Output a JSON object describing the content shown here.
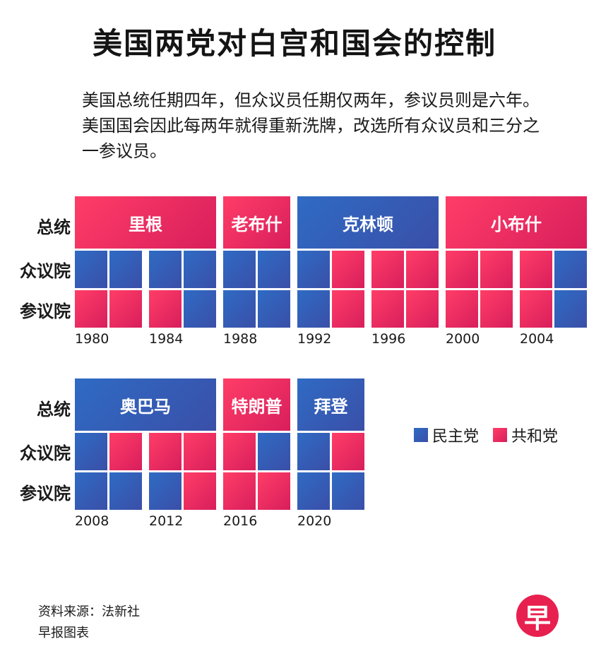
{
  "title": "美国两党对白宫和国会的控制",
  "intro": "美国总统任期四年，但众议员任期仅两年，参议员则是六年。美国国会因此每两年就得重新洗牌，改选所有众议员和三分之一参议员。",
  "row_labels": {
    "president": "总统",
    "house": "众议院",
    "senate": "参议院"
  },
  "chart_data": {
    "type": "table",
    "title": "美国两党对白宫和国会的控制",
    "parties": {
      "D": "民主党",
      "R": "共和党"
    },
    "colors": {
      "D": "#3556b0",
      "R": "#ee2a5c"
    },
    "panels": [
      {
        "presidents": [
          {
            "name": "里根",
            "party": "R",
            "start": 1980,
            "terms": 2
          },
          {
            "name": "老布什",
            "party": "R",
            "start": 1988,
            "terms": 1
          },
          {
            "name": "克林顿",
            "party": "D",
            "start": 1992,
            "terms": 2
          },
          {
            "name": "小布什",
            "party": "R",
            "start": 2000,
            "terms": 2
          }
        ],
        "years": [
          "1980",
          "1984",
          "1988",
          "1992",
          "1996",
          "2000",
          "2004"
        ],
        "house": [
          "D",
          "D",
          "D",
          "D",
          "D",
          "D",
          "D",
          "R",
          "R",
          "R",
          "R",
          "R",
          "R",
          "D"
        ],
        "senate": [
          "R",
          "R",
          "R",
          "D",
          "D",
          "D",
          "D",
          "R",
          "R",
          "R",
          "R",
          "R",
          "R",
          "D"
        ]
      },
      {
        "presidents": [
          {
            "name": "奥巴马",
            "party": "D",
            "start": 2008,
            "terms": 2
          },
          {
            "name": "特朗普",
            "party": "R",
            "start": 2016,
            "terms": 1
          },
          {
            "name": "拜登",
            "party": "D",
            "start": 2020,
            "terms": 1
          }
        ],
        "years": [
          "2008",
          "2012",
          "2016",
          "2020"
        ],
        "house": [
          "D",
          "R",
          "R",
          "R",
          "R",
          "D",
          "D",
          "R"
        ],
        "senate": [
          "D",
          "D",
          "D",
          "R",
          "R",
          "R",
          "D",
          "D"
        ]
      }
    ]
  },
  "source": "资料来源：法新社",
  "credit": "早报图表",
  "logo": "早"
}
